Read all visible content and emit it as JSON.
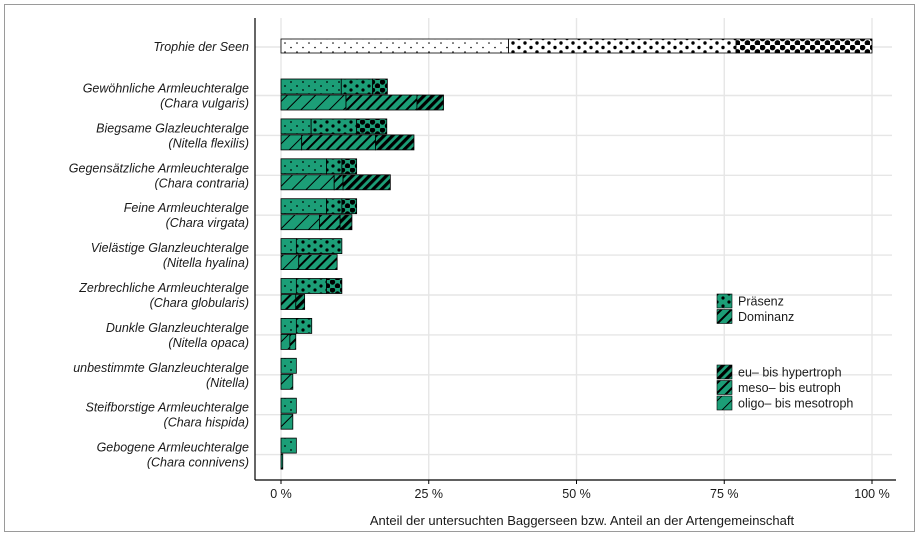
{
  "chart_data": {
    "type": "bar",
    "orientation": "horizontal",
    "stacked": true,
    "xlabel": "Anteil der untersuchten Baggerseen bzw. Anteil an der Artengemeinschaft",
    "xlim": [
      0,
      100
    ],
    "x_ticks": [
      {
        "value": 0,
        "label": "0 %"
      },
      {
        "value": 25,
        "label": "25 %"
      },
      {
        "value": 50,
        "label": "50 %"
      },
      {
        "value": 75,
        "label": "75 %"
      },
      {
        "value": 100,
        "label": "100 %"
      }
    ],
    "grid": true,
    "colors": {
      "fill": "#1c9e77",
      "trophie_fill": "#ffffff",
      "stroke": "#000000",
      "grid": "#e6e6e6"
    },
    "trophie": {
      "label": "Trophie der Seen",
      "segments": [
        {
          "class": "oligo- bis mesotroph",
          "value": 38.5
        },
        {
          "class": "meso- bis eutroph",
          "value": 38.5
        },
        {
          "class": "eu- bis hypertroph",
          "value": 23.0
        }
      ]
    },
    "trophic_classes": [
      "oligo- bis mesotroph",
      "meso- bis eutroph",
      "eu- bis hypertroph"
    ],
    "species": [
      {
        "line1": "Gewöhnliche Armleuchteralge",
        "line2": "(Chara vulgaris)",
        "praesenz": [
          10.2,
          5.3,
          2.5
        ],
        "dominanz": [
          11.0,
          12.0,
          4.5
        ]
      },
      {
        "line1": "Biegsame Glazleuchteralge",
        "line2": "(Nitella flexilis)",
        "praesenz": [
          5.1,
          7.7,
          5.1
        ],
        "dominanz": [
          3.5,
          12.5,
          6.5
        ]
      },
      {
        "line1": "Gegensätzliche Armleuchteralge",
        "line2": "(Chara contraria)",
        "praesenz": [
          7.7,
          2.6,
          2.5
        ],
        "dominanz": [
          9.0,
          1.5,
          8.0
        ]
      },
      {
        "line1": "Feine Armleuchteralge",
        "line2": "(Chara virgata)",
        "praesenz": [
          7.7,
          2.6,
          2.5
        ],
        "dominanz": [
          6.5,
          3.5,
          2.0
        ]
      },
      {
        "line1": "Vielästige Glanzleuchteralge",
        "line2": "(Nitella hyalina)",
        "praesenz": [
          2.6,
          7.7,
          0.0
        ],
        "dominanz": [
          3.0,
          6.5,
          0.0
        ]
      },
      {
        "line1": "Zerbrechliche Armleuchteralge",
        "line2": "(Chara globularis)",
        "praesenz": [
          2.6,
          5.1,
          2.6
        ],
        "dominanz": [
          0.0,
          2.5,
          1.5
        ]
      },
      {
        "line1": "Dunkle Glanzleuchteralge",
        "line2": "(Nitella opaca)",
        "praesenz": [
          2.6,
          2.6,
          0.0
        ],
        "dominanz": [
          1.5,
          1.0,
          0.0
        ]
      },
      {
        "line1": "unbestimmte Glanzleuchteralge",
        "line2": "(Nitella)",
        "praesenz": [
          2.6,
          0.0,
          0.0
        ],
        "dominanz": [
          2.0,
          0.0,
          0.0
        ]
      },
      {
        "line1": "Steifborstige Armleuchteralge",
        "line2": "(Chara hispida)",
        "praesenz": [
          2.6,
          0.0,
          0.0
        ],
        "dominanz": [
          2.0,
          0.0,
          0.0
        ]
      },
      {
        "line1": "Gebogene Armleuchteralge",
        "line2": "(Chara connivens)",
        "praesenz": [
          2.6,
          0.0,
          0.0
        ],
        "dominanz": [
          0.3,
          0.0,
          0.0
        ]
      }
    ],
    "legend": {
      "placement": "right",
      "measure": [
        {
          "key": "praesenz",
          "label": "Präsenz"
        },
        {
          "key": "dominanz",
          "label": "Dominanz"
        }
      ],
      "trophie": [
        {
          "class": "eu- bis hypertroph",
          "label": "eu– bis hypertroph"
        },
        {
          "class": "meso- bis eutroph",
          "label": "meso– bis eutroph"
        },
        {
          "class": "oligo- bis mesotroph",
          "label": "oligo– bis mesotroph"
        }
      ]
    }
  }
}
